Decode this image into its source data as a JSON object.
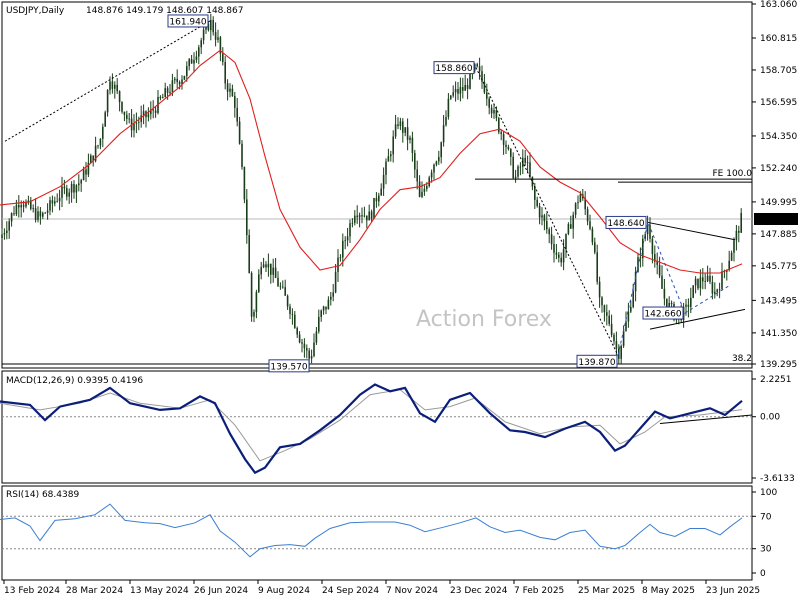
{
  "chart_data": [
    {
      "type": "candlestick",
      "title": "USDJPY,Daily",
      "ohlc": "148.876 149.179 148.607 148.867",
      "last_price": "148.867",
      "watermark": "Action Forex",
      "ylim": [
        139.295,
        163.06
      ],
      "y_ticks": [
        "163.060",
        "160.815",
        "158.705",
        "156.595",
        "154.350",
        "152.240",
        "149.995",
        "147.885",
        "145.775",
        "143.495",
        "141.350",
        "139.295"
      ],
      "x_ticks": [
        "13 Feb 2024",
        "28 Mar 2024",
        "13 May 2024",
        "26 Jun 2024",
        "9 Aug 2024",
        "24 Sep 2024",
        "7 Nov 2024",
        "23 Dec 2024",
        "7 Feb 2025",
        "25 Mar 2025",
        "8 May 2025",
        "23 Jun 2025"
      ],
      "price_path": [
        [
          0,
          147.6
        ],
        [
          20,
          150.2
        ],
        [
          40,
          148.9
        ],
        [
          60,
          150.5
        ],
        [
          80,
          151.3
        ],
        [
          100,
          154.0
        ],
        [
          110,
          158.3
        ],
        [
          130,
          155.0
        ],
        [
          150,
          155.8
        ],
        [
          170,
          157.5
        ],
        [
          185,
          158.5
        ],
        [
          200,
          160.5
        ],
        [
          210,
          161.94
        ],
        [
          218,
          160.6
        ],
        [
          225,
          158.0
        ],
        [
          235,
          156.5
        ],
        [
          245,
          150.0
        ],
        [
          252,
          142.0
        ],
        [
          262,
          146.5
        ],
        [
          275,
          145.0
        ],
        [
          290,
          143.0
        ],
        [
          300,
          141.0
        ],
        [
          310,
          139.57
        ],
        [
          320,
          142.5
        ],
        [
          330,
          143.5
        ],
        [
          340,
          146.5
        ],
        [
          355,
          149.5
        ],
        [
          370,
          149.0
        ],
        [
          385,
          152.0
        ],
        [
          398,
          155.3
        ],
        [
          410,
          154.0
        ],
        [
          420,
          150.0
        ],
        [
          430,
          152.0
        ],
        [
          440,
          153.5
        ],
        [
          450,
          157.0
        ],
        [
          465,
          157.5
        ],
        [
          476,
          158.86
        ],
        [
          485,
          157.5
        ],
        [
          495,
          155.5
        ],
        [
          505,
          154.0
        ],
        [
          515,
          151.5
        ],
        [
          525,
          153.0
        ],
        [
          535,
          150.0
        ],
        [
          548,
          148.0
        ],
        [
          560,
          146.0
        ],
        [
          570,
          148.5
        ],
        [
          580,
          150.6
        ],
        [
          592,
          148.0
        ],
        [
          600,
          143.0
        ],
        [
          610,
          142.0
        ],
        [
          618,
          139.87
        ],
        [
          628,
          142.5
        ],
        [
          638,
          146.0
        ],
        [
          648,
          148.64
        ],
        [
          655,
          146.0
        ],
        [
          665,
          143.5
        ],
        [
          675,
          142.5
        ],
        [
          685,
          142.66
        ],
        [
          695,
          144.5
        ],
        [
          705,
          145.0
        ],
        [
          715,
          144.0
        ],
        [
          725,
          145.5
        ],
        [
          735,
          147.5
        ],
        [
          742,
          149.0
        ]
      ],
      "ma_line": [
        [
          0,
          149.8
        ],
        [
          30,
          150.0
        ],
        [
          60,
          151.0
        ],
        [
          90,
          152.5
        ],
        [
          120,
          154.5
        ],
        [
          150,
          156.0
        ],
        [
          180,
          157.6
        ],
        [
          200,
          159.0
        ],
        [
          220,
          160.0
        ],
        [
          235,
          159.2
        ],
        [
          250,
          156.8
        ],
        [
          265,
          153.0
        ],
        [
          280,
          149.5
        ],
        [
          300,
          147.0
        ],
        [
          320,
          145.5
        ],
        [
          340,
          145.8
        ],
        [
          360,
          147.5
        ],
        [
          380,
          149.5
        ],
        [
          400,
          150.8
        ],
        [
          420,
          151.0
        ],
        [
          440,
          151.6
        ],
        [
          460,
          153.2
        ],
        [
          480,
          154.5
        ],
        [
          500,
          154.8
        ],
        [
          520,
          154.0
        ],
        [
          540,
          152.3
        ],
        [
          560,
          151.3
        ],
        [
          580,
          150.6
        ],
        [
          600,
          149.0
        ],
        [
          620,
          147.3
        ],
        [
          640,
          146.5
        ],
        [
          660,
          146.0
        ],
        [
          680,
          145.5
        ],
        [
          700,
          145.3
        ],
        [
          720,
          145.3
        ],
        [
          742,
          145.9
        ]
      ],
      "trend_line_dotted": [
        [
          5,
          154.0
        ],
        [
          210,
          161.94
        ]
      ],
      "retrace_line_dotted": [
        [
          476,
          158.86
        ],
        [
          618,
          139.87
        ]
      ],
      "swing_line_dashed": [
        [
          618,
          139.87
        ],
        [
          648,
          148.64
        ],
        [
          685,
          142.66
        ],
        [
          730,
          144.5
        ]
      ],
      "channel_upper": [
        [
          648,
          148.64
        ],
        [
          735,
          147.5
        ]
      ],
      "channel_lower": [
        [
          650,
          141.6
        ],
        [
          745,
          142.9
        ]
      ],
      "hline_1": {
        "y": 151.5,
        "x_from": 475,
        "x_to": 752
      },
      "hline_2": {
        "y": 151.3,
        "x_from": 618,
        "x_to": 752
      },
      "hline_label": "FE 100.0",
      "fib_label": "38.2",
      "annotations": [
        {
          "x": 210,
          "y": 161.94,
          "label": "161.940",
          "pos": "left"
        },
        {
          "x": 310,
          "y": 139.57,
          "label": "139.570",
          "pos": "below-left"
        },
        {
          "x": 476,
          "y": 158.86,
          "label": "158.860",
          "pos": "left"
        },
        {
          "x": 618,
          "y": 139.87,
          "label": "139.870",
          "pos": "below-left"
        },
        {
          "x": 648,
          "y": 148.64,
          "label": "148.640",
          "pos": "left"
        },
        {
          "x": 685,
          "y": 142.66,
          "label": "142.660",
          "pos": "left"
        }
      ]
    },
    {
      "type": "line",
      "title": "MACD(12,26,9) 0.9395 0.4196",
      "ylim": [
        -3.6133,
        2.2251
      ],
      "y_ticks": [
        "2.2251",
        "0.00",
        "-3.6133"
      ],
      "macd": [
        [
          0,
          0.9
        ],
        [
          30,
          0.7
        ],
        [
          45,
          -0.2
        ],
        [
          60,
          0.6
        ],
        [
          90,
          1.0
        ],
        [
          110,
          1.7
        ],
        [
          130,
          0.8
        ],
        [
          160,
          0.4
        ],
        [
          180,
          0.5
        ],
        [
          200,
          1.2
        ],
        [
          215,
          0.8
        ],
        [
          230,
          -1.0
        ],
        [
          245,
          -2.5
        ],
        [
          255,
          -3.3
        ],
        [
          265,
          -3.0
        ],
        [
          280,
          -1.8
        ],
        [
          300,
          -1.6
        ],
        [
          320,
          -0.8
        ],
        [
          340,
          0.1
        ],
        [
          360,
          1.3
        ],
        [
          375,
          1.9
        ],
        [
          390,
          1.5
        ],
        [
          405,
          1.7
        ],
        [
          420,
          0.2
        ],
        [
          435,
          -0.3
        ],
        [
          450,
          1.0
        ],
        [
          470,
          1.4
        ],
        [
          490,
          0.2
        ],
        [
          510,
          -0.8
        ],
        [
          525,
          -0.9
        ],
        [
          545,
          -1.2
        ],
        [
          565,
          -0.7
        ],
        [
          585,
          -0.3
        ],
        [
          600,
          -0.9
        ],
        [
          615,
          -2.0
        ],
        [
          625,
          -1.7
        ],
        [
          640,
          -0.7
        ],
        [
          655,
          0.3
        ],
        [
          670,
          -0.1
        ],
        [
          690,
          0.2
        ],
        [
          710,
          0.5
        ],
        [
          725,
          0.1
        ],
        [
          742,
          0.94
        ]
      ],
      "signal": [
        [
          0,
          0.8
        ],
        [
          40,
          0.4
        ],
        [
          80,
          0.8
        ],
        [
          110,
          1.4
        ],
        [
          140,
          0.8
        ],
        [
          180,
          0.5
        ],
        [
          210,
          1.0
        ],
        [
          235,
          -0.5
        ],
        [
          260,
          -2.6
        ],
        [
          285,
          -2.0
        ],
        [
          310,
          -1.3
        ],
        [
          340,
          -0.2
        ],
        [
          370,
          1.3
        ],
        [
          400,
          1.6
        ],
        [
          425,
          0.4
        ],
        [
          450,
          0.6
        ],
        [
          475,
          1.1
        ],
        [
          505,
          -0.3
        ],
        [
          540,
          -1.0
        ],
        [
          570,
          -0.6
        ],
        [
          600,
          -0.5
        ],
        [
          620,
          -1.6
        ],
        [
          645,
          -0.9
        ],
        [
          665,
          0.0
        ],
        [
          700,
          0.1
        ],
        [
          742,
          0.42
        ]
      ],
      "trend_line": [
        [
          660,
          -0.4
        ],
        [
          752,
          0.1
        ]
      ]
    },
    {
      "type": "line",
      "title": "RSI(14) 68.4389",
      "ylim": [
        0,
        100
      ],
      "y_ticks": [
        "100",
        "70",
        "30",
        "0"
      ],
      "levels": [
        70,
        30
      ],
      "rsi": [
        [
          0,
          66
        ],
        [
          15,
          68
        ],
        [
          30,
          58
        ],
        [
          40,
          40
        ],
        [
          55,
          65
        ],
        [
          75,
          67
        ],
        [
          95,
          72
        ],
        [
          110,
          85
        ],
        [
          125,
          65
        ],
        [
          145,
          62
        ],
        [
          160,
          61
        ],
        [
          175,
          56
        ],
        [
          195,
          62
        ],
        [
          210,
          72
        ],
        [
          220,
          52
        ],
        [
          235,
          38
        ],
        [
          250,
          20
        ],
        [
          260,
          30
        ],
        [
          275,
          34
        ],
        [
          290,
          35
        ],
        [
          305,
          33
        ],
        [
          315,
          43
        ],
        [
          330,
          55
        ],
        [
          350,
          62
        ],
        [
          370,
          63
        ],
        [
          395,
          63
        ],
        [
          410,
          59
        ],
        [
          425,
          51
        ],
        [
          445,
          57
        ],
        [
          460,
          62
        ],
        [
          476,
          68
        ],
        [
          490,
          57
        ],
        [
          505,
          50
        ],
        [
          520,
          53
        ],
        [
          540,
          44
        ],
        [
          555,
          41
        ],
        [
          570,
          50
        ],
        [
          585,
          53
        ],
        [
          600,
          33
        ],
        [
          615,
          30
        ],
        [
          625,
          34
        ],
        [
          640,
          50
        ],
        [
          650,
          60
        ],
        [
          660,
          50
        ],
        [
          675,
          45
        ],
        [
          690,
          55
        ],
        [
          705,
          55
        ],
        [
          720,
          47
        ],
        [
          730,
          57
        ],
        [
          742,
          68
        ]
      ]
    }
  ]
}
